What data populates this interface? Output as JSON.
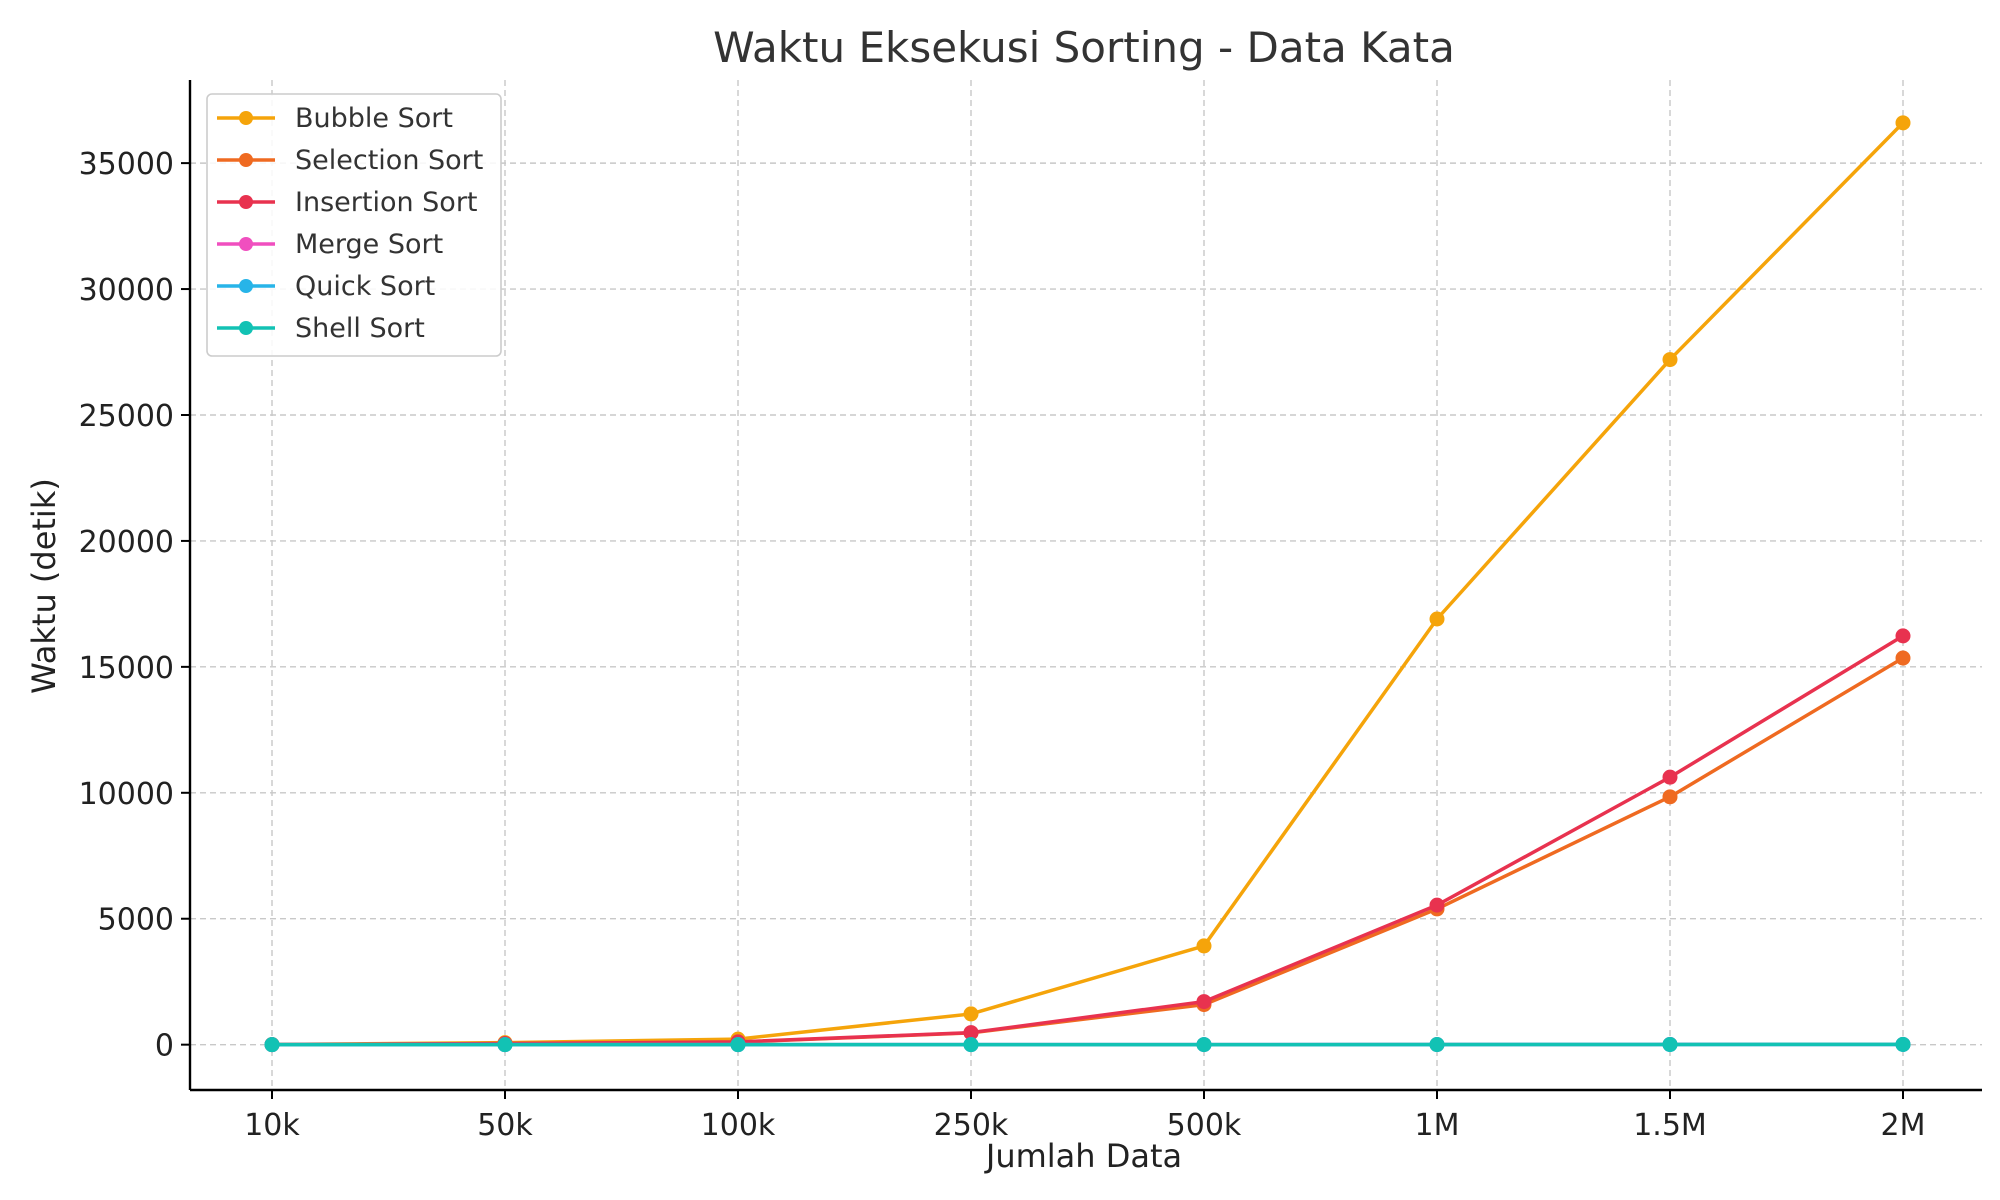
{
  "chart_data": {
    "type": "line",
    "title": "Waktu Eksekusi Sorting - Data Kata",
    "xlabel": "Jumlah Data",
    "ylabel": "Waktu (detik)",
    "categories": [
      "10k",
      "50k",
      "100k",
      "250k",
      "500k",
      "1M",
      "1.5M",
      "2M"
    ],
    "ylim": [
      -1800,
      38300
    ],
    "yticks": [
      0,
      5000,
      10000,
      15000,
      20000,
      25000,
      30000,
      35000
    ],
    "grid": true,
    "legend": "top-left",
    "series": [
      {
        "name": "Bubble Sort",
        "color": "#f5a40a",
        "values": [
          5,
          80,
          220,
          1220,
          3920,
          16900,
          27200,
          36600
        ]
      },
      {
        "name": "Selection Sort",
        "color": "#ef6a21",
        "values": [
          2,
          40,
          100,
          470,
          1590,
          5390,
          9840,
          15350
        ]
      },
      {
        "name": "Insertion Sort",
        "color": "#e8324f",
        "values": [
          2,
          45,
          110,
          480,
          1710,
          5540,
          10620,
          16230
        ]
      },
      {
        "name": "Merge Sort",
        "color": "#f04fbf",
        "values": [
          0.05,
          0.3,
          0.6,
          1.5,
          3,
          6,
          9,
          12
        ]
      },
      {
        "name": "Quick Sort",
        "color": "#27b4e8",
        "values": [
          0.03,
          0.2,
          0.4,
          1,
          2,
          4,
          6,
          8
        ]
      },
      {
        "name": "Shell Sort",
        "color": "#12c2b4",
        "values": [
          0.04,
          0.25,
          0.5,
          1.3,
          2.7,
          5.5,
          8.5,
          11
        ]
      }
    ]
  }
}
